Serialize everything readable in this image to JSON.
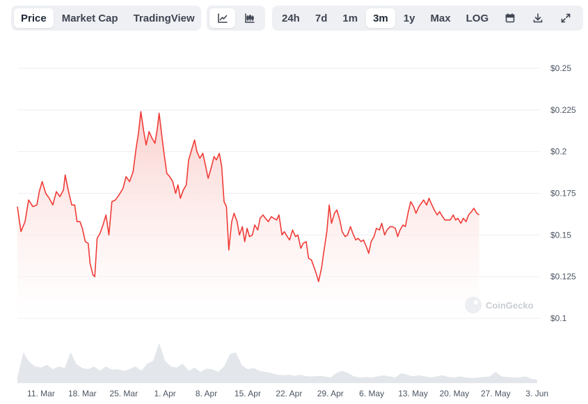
{
  "toolbar": {
    "type_tabs": [
      {
        "label": "Price",
        "active": true
      },
      {
        "label": "Market Cap",
        "active": false
      },
      {
        "label": "TradingView",
        "active": false
      }
    ],
    "chart_type_buttons": [
      {
        "icon": "line-chart-icon",
        "active": true
      },
      {
        "icon": "candlestick-chart-icon",
        "active": false
      }
    ],
    "ranges": [
      {
        "label": "24h",
        "active": false
      },
      {
        "label": "7d",
        "active": false
      },
      {
        "label": "1m",
        "active": false
      },
      {
        "label": "3m",
        "active": true
      },
      {
        "label": "1y",
        "active": false
      },
      {
        "label": "Max",
        "active": false
      },
      {
        "label": "LOG",
        "active": false
      }
    ],
    "tool_icons": [
      "calendar-icon",
      "download-icon",
      "expand-icon"
    ]
  },
  "watermark": "CoinGecko",
  "colors": {
    "line": "#ef3b36",
    "fill_top": "#f9c9c6",
    "volume": "#e3e6ea",
    "grid": "#eceef1",
    "toolbar_bg": "#eef0f3"
  },
  "chart_data": {
    "type": "line",
    "y_ticks": [
      "$0.25",
      "$0.225",
      "$0.2",
      "$0.175",
      "$0.15",
      "$0.125",
      "$0.1"
    ],
    "ylim": [
      0.1,
      0.25
    ],
    "x_ticks": [
      {
        "label": "11. Mar",
        "day": 11
      },
      {
        "label": "18. Mar",
        "day": 18
      },
      {
        "label": "25. Mar",
        "day": 25
      },
      {
        "label": "1. Apr",
        "day": 32
      },
      {
        "label": "8. Apr",
        "day": 39
      },
      {
        "label": "15. Apr",
        "day": 46
      },
      {
        "label": "22. Apr",
        "day": 53
      },
      {
        "label": "29. Apr",
        "day": 60
      },
      {
        "label": "6. May",
        "day": 67
      },
      {
        "label": "13. May",
        "day": 74
      },
      {
        "label": "20. May",
        "day": 81
      },
      {
        "label": "27. May",
        "day": 88
      },
      {
        "label": "3. Jun",
        "day": 95
      }
    ],
    "x_range_days": [
      7,
      95.5
    ],
    "series": [
      {
        "points": [
          [
            7.0,
            0.167
          ],
          [
            7.6,
            0.152
          ],
          [
            8.3,
            0.158
          ],
          [
            8.9,
            0.171
          ],
          [
            9.6,
            0.167
          ],
          [
            10.3,
            0.168
          ],
          [
            10.7,
            0.176
          ],
          [
            11.2,
            0.182
          ],
          [
            11.8,
            0.175
          ],
          [
            12.4,
            0.172
          ],
          [
            13.0,
            0.168
          ],
          [
            13.6,
            0.176
          ],
          [
            14.2,
            0.173
          ],
          [
            14.8,
            0.177
          ],
          [
            15.1,
            0.186
          ],
          [
            15.6,
            0.177
          ],
          [
            16.2,
            0.168
          ],
          [
            16.7,
            0.168
          ],
          [
            17.1,
            0.158
          ],
          [
            17.6,
            0.158
          ],
          [
            18.0,
            0.154
          ],
          [
            18.5,
            0.146
          ],
          [
            19.0,
            0.145
          ],
          [
            19.3,
            0.133
          ],
          [
            19.8,
            0.126
          ],
          [
            20.1,
            0.125
          ],
          [
            20.5,
            0.148
          ],
          [
            21.0,
            0.151
          ],
          [
            21.5,
            0.156
          ],
          [
            22.0,
            0.162
          ],
          [
            22.5,
            0.15
          ],
          [
            23.0,
            0.17
          ],
          [
            23.6,
            0.171
          ],
          [
            24.2,
            0.174
          ],
          [
            24.9,
            0.178
          ],
          [
            25.4,
            0.185
          ],
          [
            26.0,
            0.182
          ],
          [
            26.6,
            0.188
          ],
          [
            27.1,
            0.202
          ],
          [
            27.5,
            0.211
          ],
          [
            27.9,
            0.224
          ],
          [
            28.4,
            0.212
          ],
          [
            28.8,
            0.204
          ],
          [
            29.3,
            0.212
          ],
          [
            29.8,
            0.208
          ],
          [
            30.3,
            0.205
          ],
          [
            30.7,
            0.214
          ],
          [
            31.0,
            0.223
          ],
          [
            31.4,
            0.211
          ],
          [
            31.8,
            0.2
          ],
          [
            32.3,
            0.187
          ],
          [
            32.8,
            0.185
          ],
          [
            33.3,
            0.182
          ],
          [
            33.8,
            0.175
          ],
          [
            34.2,
            0.18
          ],
          [
            34.6,
            0.172
          ],
          [
            35.1,
            0.177
          ],
          [
            35.6,
            0.18
          ],
          [
            36.0,
            0.195
          ],
          [
            36.5,
            0.201
          ],
          [
            37.0,
            0.207
          ],
          [
            37.4,
            0.2
          ],
          [
            37.9,
            0.196
          ],
          [
            38.4,
            0.199
          ],
          [
            38.9,
            0.191
          ],
          [
            39.3,
            0.184
          ],
          [
            39.8,
            0.19
          ],
          [
            40.3,
            0.197
          ],
          [
            40.7,
            0.195
          ],
          [
            41.2,
            0.199
          ],
          [
            41.6,
            0.191
          ],
          [
            42.0,
            0.17
          ],
          [
            42.4,
            0.167
          ],
          [
            42.8,
            0.141
          ],
          [
            43.3,
            0.158
          ],
          [
            43.7,
            0.163
          ],
          [
            44.2,
            0.158
          ],
          [
            44.6,
            0.15
          ],
          [
            45.1,
            0.155
          ],
          [
            45.5,
            0.146
          ],
          [
            45.9,
            0.154
          ],
          [
            46.3,
            0.149
          ],
          [
            46.8,
            0.15
          ],
          [
            47.2,
            0.156
          ],
          [
            47.7,
            0.153
          ],
          [
            48.1,
            0.16
          ],
          [
            48.6,
            0.162
          ],
          [
            49.0,
            0.16
          ],
          [
            49.5,
            0.158
          ],
          [
            50.0,
            0.161
          ],
          [
            50.4,
            0.16
          ],
          [
            50.9,
            0.159
          ],
          [
            51.3,
            0.162
          ],
          [
            51.8,
            0.15
          ],
          [
            52.2,
            0.152
          ],
          [
            52.7,
            0.149
          ],
          [
            53.1,
            0.147
          ],
          [
            53.6,
            0.153
          ],
          [
            54.1,
            0.149
          ],
          [
            54.5,
            0.15
          ],
          [
            55.0,
            0.142
          ],
          [
            55.4,
            0.145
          ],
          [
            55.9,
            0.146
          ],
          [
            56.3,
            0.136
          ],
          [
            56.8,
            0.135
          ],
          [
            57.2,
            0.131
          ],
          [
            57.6,
            0.127
          ],
          [
            58.0,
            0.122
          ],
          [
            58.5,
            0.13
          ],
          [
            58.9,
            0.14
          ],
          [
            59.4,
            0.152
          ],
          [
            59.8,
            0.168
          ],
          [
            60.2,
            0.157
          ],
          [
            60.7,
            0.163
          ],
          [
            61.1,
            0.165
          ],
          [
            61.6,
            0.159
          ],
          [
            62.0,
            0.152
          ],
          [
            62.5,
            0.149
          ],
          [
            62.9,
            0.15
          ],
          [
            63.4,
            0.155
          ],
          [
            63.8,
            0.151
          ],
          [
            64.3,
            0.147
          ],
          [
            64.7,
            0.148
          ],
          [
            65.2,
            0.146
          ],
          [
            65.6,
            0.147
          ],
          [
            66.1,
            0.143
          ],
          [
            66.5,
            0.139
          ],
          [
            66.9,
            0.146
          ],
          [
            67.4,
            0.149
          ],
          [
            67.8,
            0.154
          ],
          [
            68.3,
            0.153
          ],
          [
            68.7,
            0.157
          ],
          [
            69.2,
            0.15
          ],
          [
            69.6,
            0.153
          ],
          [
            70.1,
            0.155
          ],
          [
            70.5,
            0.155
          ],
          [
            71.0,
            0.154
          ],
          [
            71.4,
            0.149
          ],
          [
            71.8,
            0.153
          ],
          [
            72.3,
            0.156
          ],
          [
            72.7,
            0.155
          ],
          [
            73.2,
            0.164
          ],
          [
            73.6,
            0.17
          ],
          [
            74.1,
            0.167
          ],
          [
            74.5,
            0.163
          ],
          [
            75.0,
            0.167
          ],
          [
            75.4,
            0.169
          ],
          [
            75.8,
            0.171
          ],
          [
            76.3,
            0.168
          ],
          [
            76.7,
            0.172
          ],
          [
            77.2,
            0.168
          ],
          [
            77.6,
            0.165
          ],
          [
            78.1,
            0.162
          ],
          [
            78.5,
            0.164
          ],
          [
            79.0,
            0.161
          ],
          [
            79.4,
            0.159
          ],
          [
            79.9,
            0.159
          ],
          [
            80.3,
            0.159
          ],
          [
            80.8,
            0.162
          ],
          [
            81.2,
            0.159
          ],
          [
            81.6,
            0.16
          ],
          [
            82.1,
            0.157
          ],
          [
            82.5,
            0.16
          ],
          [
            83.0,
            0.158
          ],
          [
            83.4,
            0.162
          ],
          [
            83.9,
            0.164
          ],
          [
            84.3,
            0.166
          ],
          [
            84.8,
            0.163
          ],
          [
            85.2,
            0.162
          ]
        ]
      }
    ],
    "volume": [
      [
        7,
        0.1
      ],
      [
        8,
        0.55
      ],
      [
        9,
        0.38
      ],
      [
        10,
        0.3
      ],
      [
        11,
        0.28
      ],
      [
        12,
        0.33
      ],
      [
        13,
        0.25
      ],
      [
        14,
        0.3
      ],
      [
        15,
        0.27
      ],
      [
        16,
        0.55
      ],
      [
        17,
        0.34
      ],
      [
        18,
        0.27
      ],
      [
        19,
        0.25
      ],
      [
        20,
        0.3
      ],
      [
        21,
        0.22
      ],
      [
        22,
        0.3
      ],
      [
        23,
        0.24
      ],
      [
        24,
        0.25
      ],
      [
        25,
        0.22
      ],
      [
        26,
        0.25
      ],
      [
        27,
        0.3
      ],
      [
        28,
        0.22
      ],
      [
        29,
        0.35
      ],
      [
        30,
        0.4
      ],
      [
        31,
        0.72
      ],
      [
        32,
        0.4
      ],
      [
        33,
        0.3
      ],
      [
        34,
        0.28
      ],
      [
        35,
        0.35
      ],
      [
        36,
        0.22
      ],
      [
        37,
        0.28
      ],
      [
        38,
        0.2
      ],
      [
        39,
        0.26
      ],
      [
        40,
        0.25
      ],
      [
        41,
        0.2
      ],
      [
        42,
        0.3
      ],
      [
        43,
        0.52
      ],
      [
        44,
        0.55
      ],
      [
        45,
        0.32
      ],
      [
        46,
        0.25
      ],
      [
        47,
        0.27
      ],
      [
        48,
        0.22
      ],
      [
        49,
        0.2
      ],
      [
        50,
        0.18
      ],
      [
        51,
        0.15
      ],
      [
        52,
        0.14
      ],
      [
        53,
        0.15
      ],
      [
        54,
        0.13
      ],
      [
        55,
        0.15
      ],
      [
        56,
        0.12
      ],
      [
        57,
        0.12
      ],
      [
        58,
        0.13
      ],
      [
        59,
        0.12
      ],
      [
        60,
        0.1
      ],
      [
        61,
        0.18
      ],
      [
        62,
        0.22
      ],
      [
        63,
        0.18
      ],
      [
        64,
        0.12
      ],
      [
        65,
        0.1
      ],
      [
        66,
        0.11
      ],
      [
        67,
        0.1
      ],
      [
        68,
        0.12
      ],
      [
        69,
        0.14
      ],
      [
        70,
        0.12
      ],
      [
        71,
        0.1
      ],
      [
        72,
        0.18
      ],
      [
        73,
        0.15
      ],
      [
        74,
        0.12
      ],
      [
        75,
        0.14
      ],
      [
        76,
        0.12
      ],
      [
        77,
        0.1
      ],
      [
        78,
        0.12
      ],
      [
        79,
        0.14
      ],
      [
        80,
        0.11
      ],
      [
        81,
        0.1
      ],
      [
        82,
        0.12
      ],
      [
        83,
        0.1
      ],
      [
        84,
        0.09
      ],
      [
        85,
        0.1
      ],
      [
        86,
        0.11
      ],
      [
        87,
        0.12
      ],
      [
        88,
        0.2
      ],
      [
        89,
        0.12
      ],
      [
        90,
        0.11
      ],
      [
        91,
        0.1
      ],
      [
        92,
        0.1
      ],
      [
        93,
        0.12
      ],
      [
        94,
        0.08
      ],
      [
        95,
        0.06
      ]
    ]
  }
}
